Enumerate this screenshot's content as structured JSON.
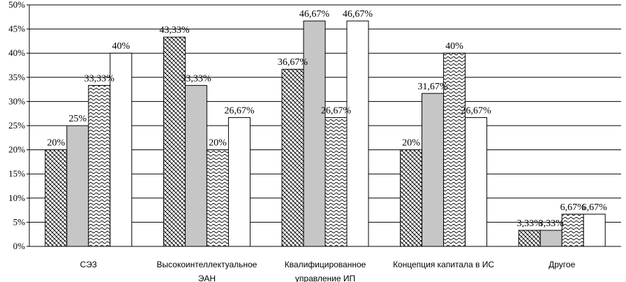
{
  "chart_data": {
    "type": "bar",
    "title": "",
    "xlabel": "",
    "ylabel": "",
    "ylim": [
      0,
      50
    ],
    "y_ticks": [
      "0%",
      "5%",
      "10%",
      "15%",
      "20%",
      "25%",
      "30%",
      "35%",
      "40%",
      "45%",
      "50%"
    ],
    "grid": "horizontal",
    "legend": "none",
    "categories": [
      [
        "СЭЗ"
      ],
      [
        "Высокоинтеллектуальное",
        "ЭАН"
      ],
      [
        "Квалифицированное",
        "управление ИП"
      ],
      [
        "Концепция капитала в ИС"
      ],
      [
        "Другое"
      ]
    ],
    "series": [
      {
        "fill": "hatch",
        "values": [
          20,
          43.33,
          36.67,
          20,
          3.33
        ],
        "labels": [
          "20%",
          "43,33%",
          "36,67%",
          "20%",
          "3,33%"
        ]
      },
      {
        "fill": "gray",
        "values": [
          25,
          33.33,
          46.67,
          31.67,
          3.33
        ],
        "labels": [
          "25%",
          "33,33%",
          "46,67%",
          "31,67%",
          "3,33%"
        ]
      },
      {
        "fill": "wave",
        "values": [
          33.33,
          20,
          26.67,
          40,
          6.67
        ],
        "labels": [
          "33,33%",
          "20%",
          "26,67%",
          "40%",
          "6,67%"
        ]
      },
      {
        "fill": "white",
        "values": [
          40,
          26.67,
          46.67,
          26.67,
          6.67
        ],
        "labels": [
          "40%",
          "26,67%",
          "46,67%",
          "26,67%",
          "6,67%"
        ]
      }
    ]
  }
}
